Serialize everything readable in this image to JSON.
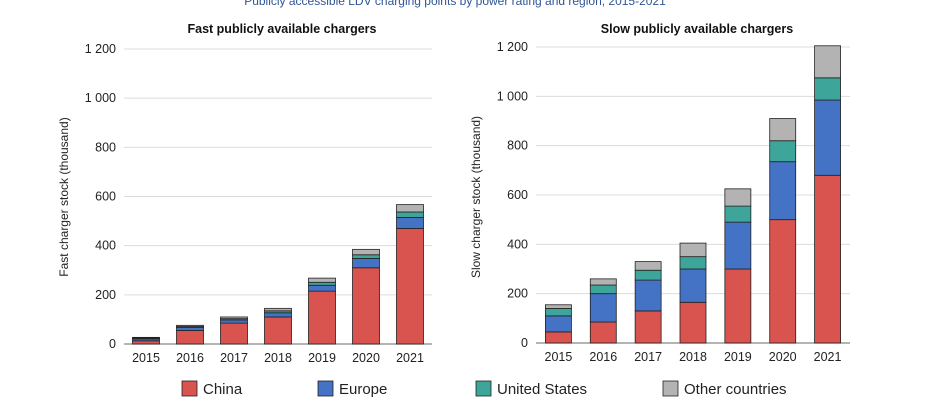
{
  "figure_title": "Publicly accessible LDV charging points by power rating and region, 2015-2021",
  "colors": {
    "China": "#d9534f",
    "Europe": "#4472c4",
    "United States": "#3ea59b",
    "Other countries": "#b3b3b3",
    "title": "#2f5597"
  },
  "legend": [
    "China",
    "Europe",
    "United States",
    "Other countries"
  ],
  "chart_data": [
    {
      "type": "bar",
      "stacked": true,
      "title": "Fast  publicly available chargers",
      "xlabel": "",
      "ylabel": "Fast charger stock (thousand)",
      "ylim": [
        0,
        1200
      ],
      "yticks": [
        0,
        200,
        400,
        600,
        800,
        1000,
        1200
      ],
      "ytick_labels": [
        "0",
        "200",
        "400",
        "600",
        "800",
        "1 000",
        "1 200"
      ],
      "categories": [
        "2015",
        "2016",
        "2017",
        "2018",
        "2019",
        "2020",
        "2021"
      ],
      "series": [
        {
          "name": "China",
          "values": [
            13,
            55,
            85,
            110,
            215,
            310,
            470
          ]
        },
        {
          "name": "Europe",
          "values": [
            8,
            12,
            13,
            17,
            24,
            38,
            45
          ]
        },
        {
          "name": "United States",
          "values": [
            3,
            4,
            5,
            8,
            12,
            15,
            22
          ]
        },
        {
          "name": "Other countries",
          "values": [
            3,
            5,
            7,
            10,
            17,
            22,
            30
          ]
        }
      ],
      "grid": true
    },
    {
      "type": "bar",
      "stacked": true,
      "title": "Slow publicly available chargers",
      "xlabel": "",
      "ylabel": "Slow charger stock (thousand)",
      "ylim": [
        0,
        1200
      ],
      "yticks": [
        0,
        200,
        400,
        600,
        800,
        1000,
        1200
      ],
      "ytick_labels": [
        "0",
        "200",
        "400",
        "600",
        "800",
        "1 000",
        "1 200"
      ],
      "categories": [
        "2015",
        "2016",
        "2017",
        "2018",
        "2019",
        "2020",
        "2021"
      ],
      "series": [
        {
          "name": "China",
          "values": [
            45,
            85,
            130,
            165,
            300,
            500,
            680
          ]
        },
        {
          "name": "Europe",
          "values": [
            65,
            115,
            125,
            135,
            190,
            235,
            305
          ]
        },
        {
          "name": "United States",
          "values": [
            30,
            35,
            40,
            50,
            65,
            85,
            90
          ]
        },
        {
          "name": "Other countries",
          "values": [
            15,
            25,
            35,
            55,
            70,
            90,
            130
          ]
        }
      ],
      "grid": true
    }
  ]
}
